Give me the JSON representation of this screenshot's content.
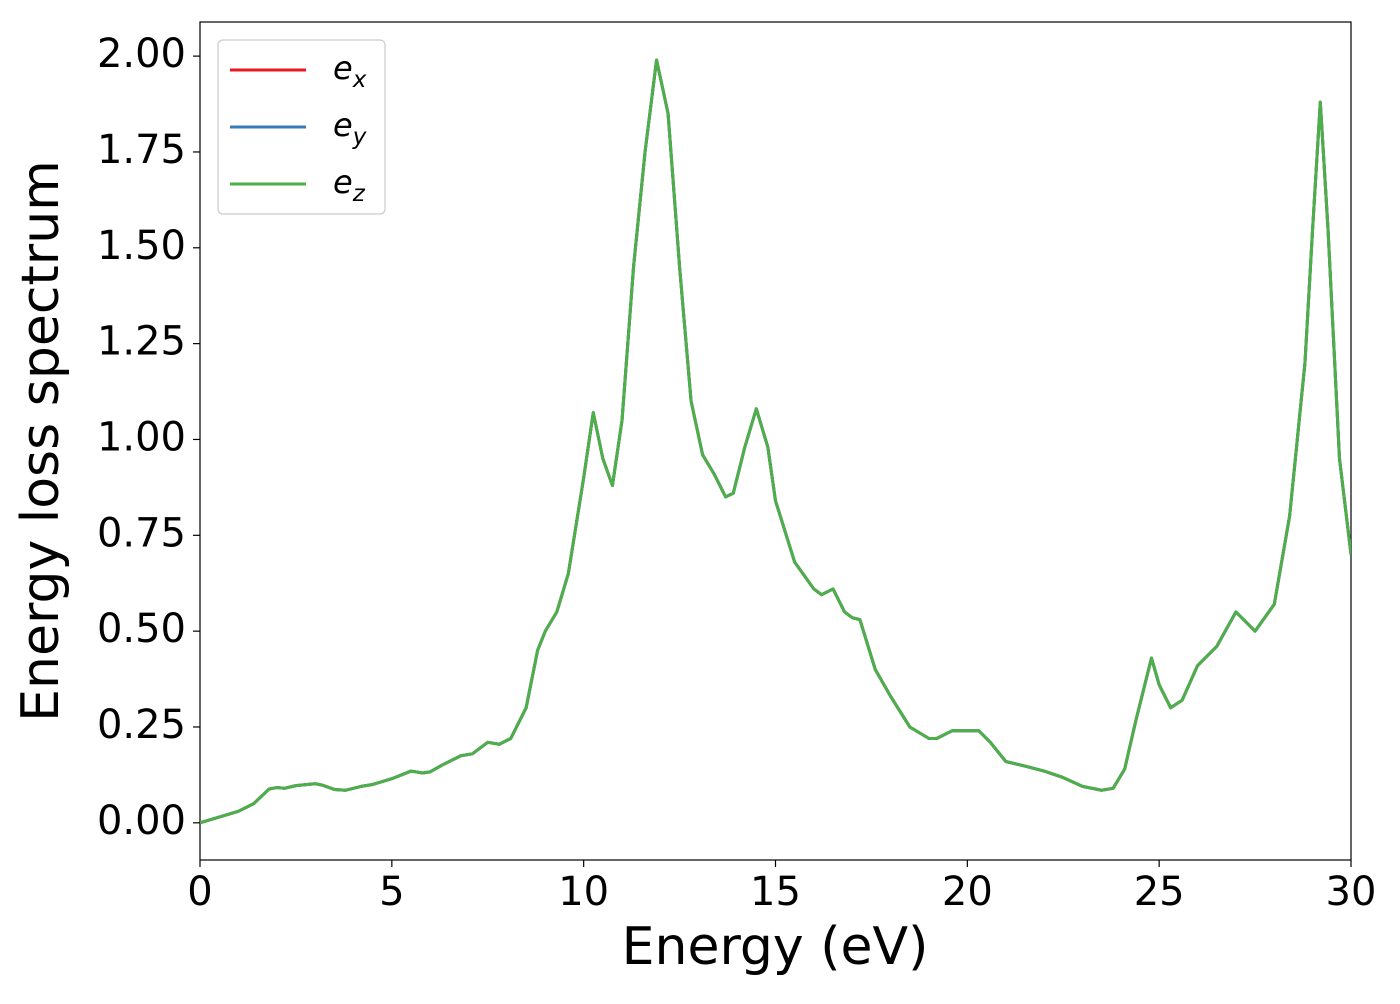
{
  "chart_data": {
    "type": "line",
    "xlabel": "Energy (eV)",
    "ylabel": "Energy loss spectrum",
    "x": [
      0,
      0.5,
      1.0,
      1.4,
      1.8,
      2.0,
      2.2,
      2.5,
      3.0,
      3.2,
      3.5,
      3.8,
      4.2,
      4.5,
      5.0,
      5.5,
      5.8,
      6.0,
      6.3,
      6.8,
      7.1,
      7.5,
      7.8,
      8.1,
      8.5,
      8.8,
      9.0,
      9.3,
      9.6,
      10.0,
      10.25,
      10.5,
      10.75,
      11.0,
      11.3,
      11.6,
      11.9,
      12.2,
      12.5,
      12.8,
      13.1,
      13.4,
      13.7,
      13.9,
      14.2,
      14.5,
      14.8,
      15.0,
      15.5,
      16.0,
      16.2,
      16.5,
      16.8,
      17.0,
      17.2,
      17.6,
      18.0,
      18.5,
      19.0,
      19.2,
      19.6,
      20.0,
      20.3,
      20.6,
      21.0,
      21.5,
      22.0,
      22.5,
      23.0,
      23.5,
      23.8,
      24.1,
      24.4,
      24.8,
      25.0,
      25.3,
      25.6,
      26.0,
      26.5,
      27.0,
      27.3,
      27.5,
      28.0,
      28.4,
      28.8,
      29.0,
      29.2,
      29.4,
      29.7,
      30.0
    ],
    "series": [
      {
        "name": "e_x",
        "color": "#e41a1c",
        "values": [
          0.0,
          0.015,
          0.03,
          0.05,
          0.088,
          0.092,
          0.09,
          0.097,
          0.102,
          0.098,
          0.087,
          0.085,
          0.095,
          0.1,
          0.115,
          0.135,
          0.13,
          0.133,
          0.15,
          0.175,
          0.18,
          0.21,
          0.205,
          0.22,
          0.3,
          0.45,
          0.5,
          0.55,
          0.65,
          0.9,
          1.07,
          0.95,
          0.88,
          1.05,
          1.45,
          1.75,
          1.99,
          1.85,
          1.45,
          1.1,
          0.96,
          0.91,
          0.85,
          0.86,
          0.98,
          1.08,
          0.98,
          0.84,
          0.68,
          0.61,
          0.595,
          0.61,
          0.55,
          0.535,
          0.53,
          0.4,
          0.33,
          0.25,
          0.22,
          0.22,
          0.24,
          0.24,
          0.24,
          0.21,
          0.16,
          0.148,
          0.135,
          0.118,
          0.095,
          0.085,
          0.09,
          0.14,
          0.27,
          0.43,
          0.36,
          0.3,
          0.32,
          0.41,
          0.46,
          0.55,
          0.52,
          0.5,
          0.57,
          0.8,
          1.2,
          1.55,
          1.88,
          1.55,
          0.95,
          0.7
        ]
      },
      {
        "name": "e_y",
        "color": "#377eb8",
        "values": [
          0.0,
          0.015,
          0.03,
          0.05,
          0.088,
          0.092,
          0.09,
          0.097,
          0.102,
          0.098,
          0.087,
          0.085,
          0.095,
          0.1,
          0.115,
          0.135,
          0.13,
          0.133,
          0.15,
          0.175,
          0.18,
          0.21,
          0.205,
          0.22,
          0.3,
          0.45,
          0.5,
          0.55,
          0.65,
          0.9,
          1.07,
          0.95,
          0.88,
          1.05,
          1.45,
          1.75,
          1.99,
          1.85,
          1.45,
          1.1,
          0.96,
          0.91,
          0.85,
          0.86,
          0.98,
          1.08,
          0.98,
          0.84,
          0.68,
          0.61,
          0.595,
          0.61,
          0.55,
          0.535,
          0.53,
          0.4,
          0.33,
          0.25,
          0.22,
          0.22,
          0.24,
          0.24,
          0.24,
          0.21,
          0.16,
          0.148,
          0.135,
          0.118,
          0.095,
          0.085,
          0.09,
          0.14,
          0.27,
          0.43,
          0.36,
          0.3,
          0.32,
          0.41,
          0.46,
          0.55,
          0.52,
          0.5,
          0.57,
          0.8,
          1.2,
          1.55,
          1.88,
          1.55,
          0.95,
          0.7
        ]
      },
      {
        "name": "e_z",
        "color": "#4daf4a",
        "values": [
          0.0,
          0.015,
          0.03,
          0.05,
          0.088,
          0.092,
          0.09,
          0.097,
          0.102,
          0.098,
          0.087,
          0.085,
          0.095,
          0.1,
          0.115,
          0.135,
          0.13,
          0.133,
          0.15,
          0.175,
          0.18,
          0.21,
          0.205,
          0.22,
          0.3,
          0.45,
          0.5,
          0.55,
          0.65,
          0.9,
          1.07,
          0.95,
          0.88,
          1.05,
          1.45,
          1.75,
          1.99,
          1.85,
          1.45,
          1.1,
          0.96,
          0.91,
          0.85,
          0.86,
          0.98,
          1.08,
          0.98,
          0.84,
          0.68,
          0.61,
          0.595,
          0.61,
          0.55,
          0.535,
          0.53,
          0.4,
          0.33,
          0.25,
          0.22,
          0.22,
          0.24,
          0.24,
          0.24,
          0.21,
          0.16,
          0.148,
          0.135,
          0.118,
          0.095,
          0.085,
          0.09,
          0.14,
          0.27,
          0.43,
          0.36,
          0.3,
          0.32,
          0.41,
          0.46,
          0.55,
          0.52,
          0.5,
          0.57,
          0.8,
          1.2,
          1.55,
          1.88,
          1.55,
          0.95,
          0.7
        ]
      }
    ],
    "xlim": [
      0,
      30
    ],
    "xticks": [
      0,
      5,
      10,
      15,
      20,
      25,
      30
    ],
    "ylim": [
      -0.097,
      2.089
    ],
    "yticks": [
      {
        "value": 0,
        "label": "0.00"
      },
      {
        "value": 0.25,
        "label": "0.25"
      },
      {
        "value": 0.5,
        "label": "0.50"
      },
      {
        "value": 0.75,
        "label": "0.75"
      },
      {
        "value": 1,
        "label": "1.00"
      },
      {
        "value": 1.25,
        "label": "1.25"
      },
      {
        "value": 1.5,
        "label": "1.50"
      },
      {
        "value": 1.75,
        "label": "1.75"
      },
      {
        "value": 2,
        "label": "2.00"
      }
    ],
    "grid": false,
    "legend": "upper left"
  }
}
